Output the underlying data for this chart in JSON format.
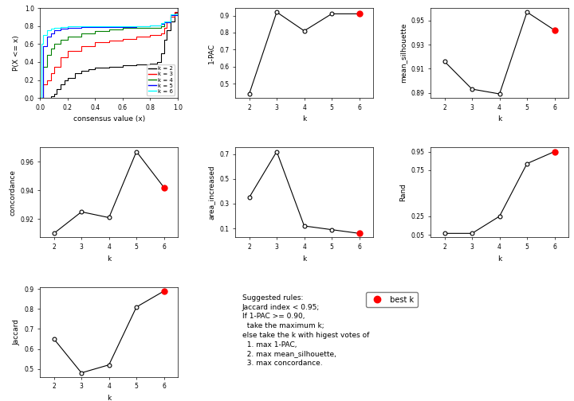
{
  "ecdf": {
    "k2": {
      "x": [
        0.0,
        0.01,
        0.02,
        0.05,
        0.08,
        0.1,
        0.12,
        0.15,
        0.18,
        0.2,
        0.25,
        0.3,
        0.35,
        0.4,
        0.5,
        0.6,
        0.7,
        0.8,
        0.85,
        0.88,
        0.9,
        0.92,
        0.95,
        0.98,
        1.0
      ],
      "y": [
        0.0,
        0.0,
        0.0,
        0.0,
        0.02,
        0.05,
        0.1,
        0.15,
        0.2,
        0.22,
        0.28,
        0.3,
        0.32,
        0.34,
        0.35,
        0.36,
        0.37,
        0.38,
        0.4,
        0.5,
        0.65,
        0.75,
        0.85,
        0.95,
        1.0
      ],
      "color": "black"
    },
    "k3": {
      "x": [
        0.0,
        0.02,
        0.05,
        0.08,
        0.1,
        0.15,
        0.2,
        0.3,
        0.4,
        0.5,
        0.6,
        0.7,
        0.8,
        0.88,
        0.9,
        0.92,
        0.95,
        0.98,
        1.0
      ],
      "y": [
        0.0,
        0.15,
        0.2,
        0.28,
        0.35,
        0.45,
        0.52,
        0.58,
        0.62,
        0.64,
        0.66,
        0.68,
        0.7,
        0.72,
        0.78,
        0.85,
        0.9,
        0.96,
        1.0
      ],
      "color": "red"
    },
    "k4": {
      "x": [
        0.0,
        0.02,
        0.05,
        0.08,
        0.1,
        0.15,
        0.2,
        0.3,
        0.4,
        0.5,
        0.6,
        0.7,
        0.8,
        0.88,
        0.9,
        0.95,
        1.0
      ],
      "y": [
        0.0,
        0.35,
        0.48,
        0.55,
        0.6,
        0.65,
        0.68,
        0.72,
        0.74,
        0.76,
        0.78,
        0.78,
        0.78,
        0.8,
        0.84,
        0.92,
        1.0
      ],
      "color": "green"
    },
    "k5": {
      "x": [
        0.0,
        0.02,
        0.05,
        0.08,
        0.1,
        0.15,
        0.2,
        0.3,
        0.5,
        0.7,
        0.8,
        0.88,
        0.9,
        0.95,
        1.0
      ],
      "y": [
        0.0,
        0.58,
        0.68,
        0.72,
        0.75,
        0.77,
        0.78,
        0.79,
        0.79,
        0.8,
        0.81,
        0.82,
        0.84,
        0.92,
        1.0
      ],
      "color": "blue"
    },
    "k6": {
      "x": [
        0.0,
        0.01,
        0.02,
        0.05,
        0.08,
        0.1,
        0.15,
        0.2,
        0.5,
        0.8,
        0.88,
        0.9,
        0.95,
        1.0
      ],
      "y": [
        0.0,
        0.6,
        0.7,
        0.75,
        0.77,
        0.78,
        0.79,
        0.8,
        0.8,
        0.81,
        0.83,
        0.85,
        0.93,
        1.0
      ],
      "color": "cyan"
    }
  },
  "k_values": [
    2,
    3,
    4,
    5,
    6
  ],
  "pac_1": [
    0.44,
    0.92,
    0.81,
    0.91,
    0.91
  ],
  "pac_best_k": 6,
  "pac_best_val": 0.91,
  "mean_sil": [
    0.916,
    0.893,
    0.889,
    0.957,
    0.942
  ],
  "mean_sil_best_k": 6,
  "mean_sil_best_val": 0.942,
  "concordance": [
    0.91,
    0.925,
    0.921,
    0.967,
    0.942
  ],
  "concordance_best_k": 6,
  "concordance_best_val": 0.942,
  "area_increased": [
    0.35,
    0.72,
    0.12,
    0.09,
    0.06
  ],
  "area_best_k": 6,
  "area_best_val": 0.06,
  "rand": [
    0.065,
    0.065,
    0.25,
    0.82,
    0.95
  ],
  "rand_best_k": 6,
  "rand_best_val": 0.95,
  "jaccard": [
    0.65,
    0.48,
    0.52,
    0.81,
    0.89
  ],
  "jaccard_best_k": 6,
  "jaccard_best_val": 0.89,
  "legend_labels": [
    "k = 2",
    "k = 3",
    "k = 4",
    "k = 5",
    "k = 6"
  ],
  "legend_colors": [
    "black",
    "red",
    "green",
    "blue",
    "cyan"
  ],
  "text_lines": [
    "Suggested rules:",
    "Jaccard index < 0.95;",
    "If 1-PAC >= 0.90,",
    "  take the maximum k;",
    "else take the k with higest votes of",
    "  1. max 1-PAC,",
    "  2. max mean_silhouette,",
    "  3. max concordance."
  ]
}
